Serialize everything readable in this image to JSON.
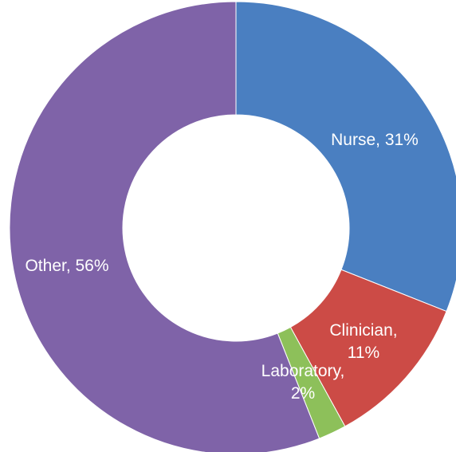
{
  "chart_data": {
    "type": "pie",
    "variant": "donut",
    "title": "",
    "legend": "none",
    "slices": [
      {
        "name": "Nurse",
        "value": 31,
        "percent_label": "31%",
        "color": "#4a7fc1"
      },
      {
        "name": "Clinician",
        "value": 11,
        "percent_label": "11%",
        "color": "#cc4b46"
      },
      {
        "name": "Laboratory",
        "value": 2,
        "percent_label": "2%",
        "color": "#8dc05a"
      },
      {
        "name": "Other",
        "value": 56,
        "percent_label": "56%",
        "color": "#7f63a8"
      }
    ]
  }
}
